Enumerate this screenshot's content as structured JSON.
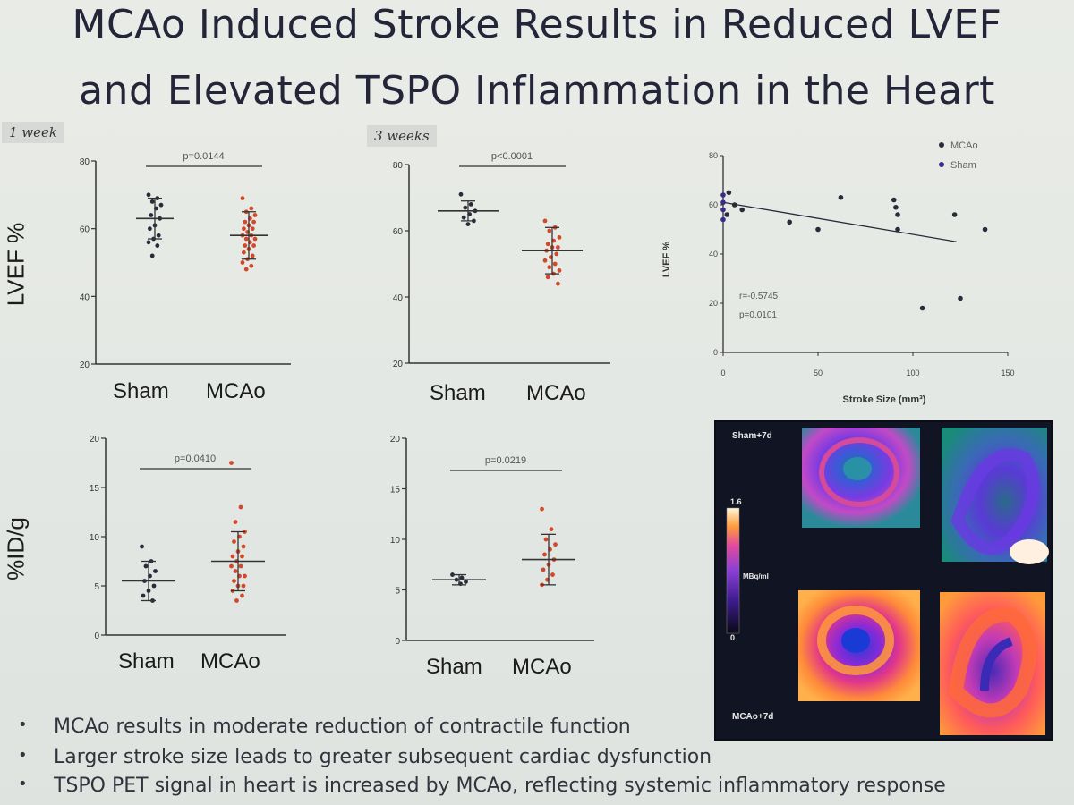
{
  "title": {
    "line1": "MCAo Induced Stroke Results in Reduced LVEF",
    "line2": "and Elevated TSPO Inflammation in the Heart"
  },
  "tags": {
    "week1": "1 week",
    "week3": "3 weeks"
  },
  "row_labels": {
    "lvef": "LVEF %",
    "tspo": "%ID/g"
  },
  "group_labels": [
    "Sham",
    "MCAo"
  ],
  "colors": {
    "sham": "#2a2a3a",
    "mcao": "#d2492a",
    "axis": "#333333"
  },
  "chart_data": [
    {
      "type": "scatter",
      "panel": "lvef-1week",
      "ylim": [
        20,
        80
      ],
      "yticks": [
        20,
        40,
        60,
        80
      ],
      "categories": [
        "Sham",
        "MCAo"
      ],
      "pvalue": "p=0.0144",
      "series": [
        {
          "name": "Sham",
          "mean": 63,
          "sd": 6,
          "values": [
            70,
            69,
            68,
            67,
            66,
            64,
            63,
            61,
            60,
            58,
            57,
            56,
            55,
            52
          ]
        },
        {
          "name": "MCAo",
          "mean": 58,
          "sd": 7,
          "values": [
            69,
            66,
            65,
            64,
            63,
            62,
            62,
            61,
            60,
            60,
            59,
            58,
            58,
            57,
            57,
            56,
            55,
            55,
            54,
            53,
            52,
            51,
            50,
            49,
            48
          ]
        }
      ]
    },
    {
      "type": "scatter",
      "panel": "lvef-3weeks",
      "ylim": [
        20,
        80
      ],
      "yticks": [
        20,
        40,
        60,
        80
      ],
      "categories": [
        "Sham",
        "MCAo"
      ],
      "pvalue": "p<0.0001",
      "series": [
        {
          "name": "Sham",
          "mean": 66,
          "sd": 3,
          "values": [
            71,
            68,
            67,
            66,
            65,
            64,
            63,
            62
          ]
        },
        {
          "name": "MCAo",
          "mean": 54,
          "sd": 7,
          "values": [
            63,
            61,
            60,
            58,
            57,
            56,
            55,
            55,
            54,
            53,
            52,
            51,
            50,
            49,
            48,
            47,
            46,
            44
          ]
        }
      ]
    },
    {
      "type": "scatter",
      "panel": "lvef-vs-stroke-size",
      "xlabel": "Stroke Size (mm³)",
      "ylabel": "LVEF %",
      "xlim": [
        0,
        150
      ],
      "ylim": [
        0,
        80
      ],
      "xticks": [
        0,
        50,
        100,
        150
      ],
      "yticks": [
        0,
        20,
        40,
        60,
        80
      ],
      "annotation": [
        "r=-0.5745",
        "p=0.0101"
      ],
      "legend": [
        "MCAo",
        "Sham"
      ],
      "series": [
        {
          "name": "MCAo",
          "x": [
            2,
            3,
            6,
            10,
            35,
            50,
            62,
            90,
            91,
            92,
            92,
            105,
            122,
            125,
            138
          ],
          "y": [
            56,
            65,
            60,
            58,
            53,
            50,
            63,
            62,
            59,
            56,
            50,
            18,
            56,
            22,
            50
          ]
        },
        {
          "name": "Sham",
          "x": [
            0,
            0,
            0,
            0
          ],
          "y": [
            64,
            61,
            58,
            54
          ]
        }
      ],
      "fit": {
        "x": [
          0,
          123
        ],
        "y": [
          61,
          45
        ]
      }
    },
    {
      "type": "scatter",
      "panel": "tspo-1week",
      "ylim": [
        0,
        20
      ],
      "yticks": [
        0,
        5,
        10,
        15,
        20
      ],
      "categories": [
        "Sham",
        "MCAo"
      ],
      "pvalue": "p=0.0410",
      "series": [
        {
          "name": "Sham",
          "mean": 5.5,
          "sd": 2,
          "values": [
            9,
            7.5,
            7,
            6.5,
            6,
            5.5,
            5,
            4.5,
            4,
            3.5
          ]
        },
        {
          "name": "MCAo",
          "mean": 7.5,
          "sd": 3,
          "values": [
            17.5,
            13,
            11.5,
            10.5,
            10,
            9.5,
            9,
            8.5,
            8,
            8,
            7.5,
            7,
            7,
            6.5,
            6,
            6,
            5.5,
            5,
            5,
            4.5,
            4,
            3.5
          ]
        }
      ]
    },
    {
      "type": "scatter",
      "panel": "tspo-3weeks",
      "ylim": [
        0,
        20
      ],
      "yticks": [
        0,
        5,
        10,
        15,
        20
      ],
      "categories": [
        "Sham",
        "MCAo"
      ],
      "pvalue": "p=0.0219",
      "series": [
        {
          "name": "Sham",
          "mean": 6,
          "sd": 0.5,
          "values": [
            6.5,
            6.2,
            6,
            5.8,
            5.6
          ]
        },
        {
          "name": "MCAo",
          "mean": 8,
          "sd": 2.5,
          "values": [
            13,
            11,
            10,
            9.5,
            9,
            8.5,
            8,
            7.5,
            7,
            6.5,
            6,
            5.5
          ]
        }
      ]
    }
  ],
  "pet": {
    "sham_label": "Sham+7d",
    "mcao_label": "MCAo+7d",
    "scale_max": "1.6",
    "scale_unit": "MBq/ml",
    "scale_min": "0"
  },
  "bullets": [
    "MCAo results in moderate reduction of contractile function",
    "Larger stroke size leads to greater subsequent cardiac dysfunction",
    "TSPO PET signal in heart is increased by MCAo, reflecting systemic inflammatory response"
  ]
}
